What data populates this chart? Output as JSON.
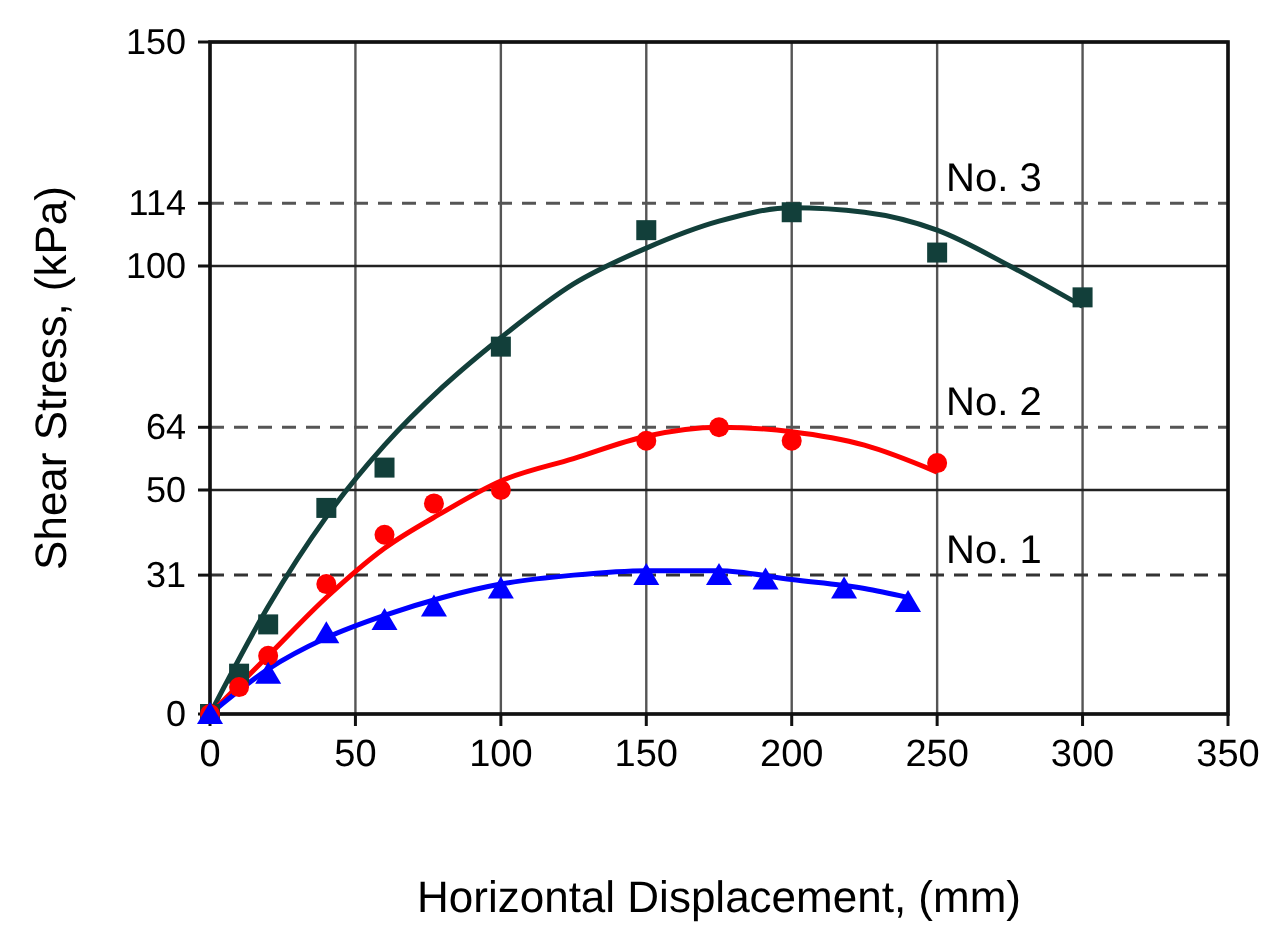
{
  "chart_data": {
    "type": "scatter",
    "xlabel": "Horizontal Displacement, (mm)",
    "ylabel": "Shear Stress, (kPa)",
    "xlim": [
      0,
      350
    ],
    "xticks": [
      0,
      50,
      100,
      150,
      200,
      250,
      300,
      350
    ],
    "ylim": [
      0,
      150
    ],
    "yticks": [
      0,
      50,
      100,
      150
    ],
    "grid": true,
    "series": [
      {
        "marker": "square",
        "color": "#123f3a",
        "x": [
          0,
          10,
          20,
          40,
          60,
          100,
          150,
          200,
          250,
          300
        ],
        "values": [
          0,
          9,
          20,
          46,
          55,
          82,
          108,
          112,
          103,
          93
        ]
      },
      {
        "marker": "circle",
        "color": "#ff0000",
        "x": [
          0,
          10,
          20,
          40,
          60,
          77,
          100,
          150,
          175,
          200,
          250
        ],
        "values": [
          0,
          6,
          13,
          29,
          40,
          47,
          50,
          61,
          64,
          61,
          56
        ]
      },
      {
        "marker": "triangle",
        "color": "#0000ff",
        "x": [
          0,
          20,
          40,
          60,
          77,
          100,
          150,
          175,
          191,
          218,
          240
        ],
        "values": [
          0,
          9,
          18,
          21,
          24,
          28,
          31,
          31,
          30,
          28,
          25
        ]
      },
      {
        "type": "line",
        "marker": "none",
        "color": "#123f3a",
        "x": [
          0,
          20,
          40,
          60,
          80,
          100,
          125,
          150,
          175,
          200,
          225,
          250,
          275,
          300
        ],
        "values": [
          0,
          24,
          44,
          60,
          73,
          84,
          96,
          104,
          110,
          113,
          112,
          108,
          100,
          91
        ]
      },
      {
        "type": "line",
        "marker": "none",
        "color": "#ff0000",
        "x": [
          0,
          20,
          40,
          60,
          80,
          100,
          125,
          150,
          175,
          200,
          225,
          250
        ],
        "values": [
          0,
          13,
          26,
          37,
          45,
          52,
          57,
          62,
          64,
          63,
          60,
          54
        ]
      },
      {
        "type": "line",
        "marker": "none",
        "color": "#0000ff",
        "x": [
          0,
          20,
          40,
          60,
          80,
          100,
          125,
          150,
          175,
          200,
          225,
          240
        ],
        "values": [
          0,
          10,
          17,
          22,
          26,
          29,
          31,
          32,
          32,
          30,
          28,
          26
        ]
      }
    ],
    "ref_lines": [
      {
        "axis": "y",
        "value": 114,
        "label": "114",
        "line_style": "dashed",
        "color": "#555555"
      },
      {
        "axis": "y",
        "value": 64,
        "label": "64",
        "line_style": "dashed",
        "color": "#555555"
      },
      {
        "axis": "y",
        "value": 31,
        "label": "31",
        "line_style": "dashed",
        "color": "#333333"
      }
    ],
    "annotations": [
      {
        "text": "No. 3",
        "y": 114
      },
      {
        "text": "No. 2",
        "y": 64
      },
      {
        "text": "No. 1",
        "y": 31
      }
    ]
  }
}
